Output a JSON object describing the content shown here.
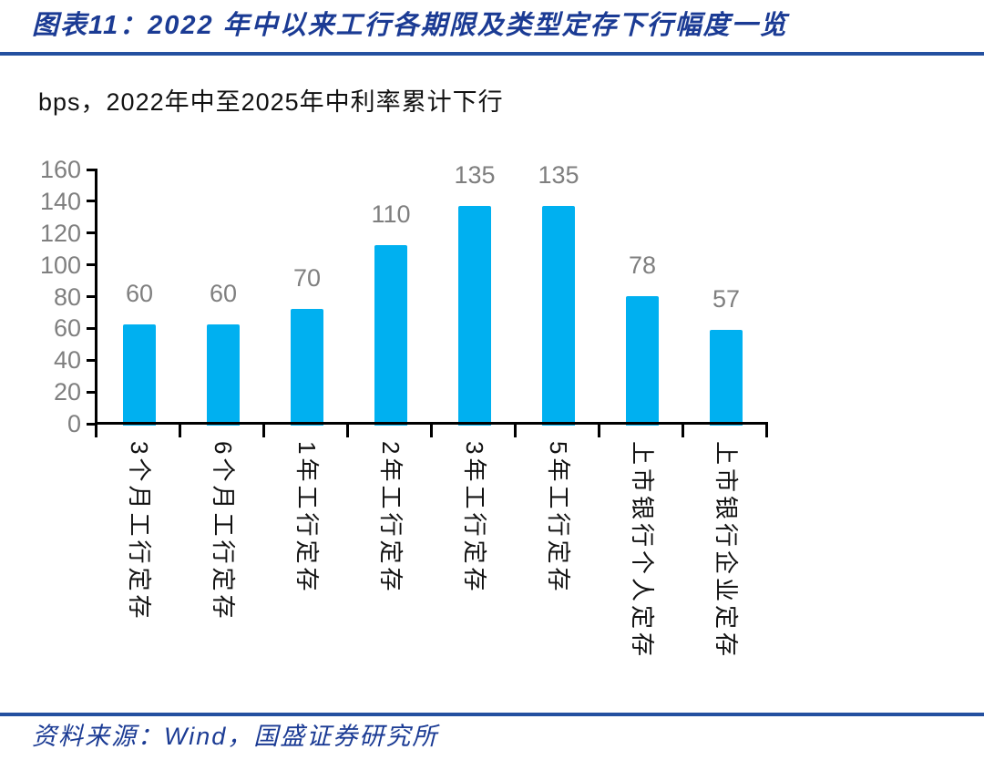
{
  "header": {
    "title": "图表11：2022 年中以来工行各期限及类型定存下行幅度一览"
  },
  "chart_data": {
    "type": "bar",
    "title": "bps，2022年中至2025年中利率累计下行",
    "unit": "bps",
    "categories": [
      "3个月工行定存",
      "6个月工行定存",
      "1年工行定存",
      "2年工行定存",
      "3年工行定存",
      "5年工行定存",
      "上市银行个人定存",
      "上市银行企业定存"
    ],
    "values": [
      60,
      60,
      70,
      110,
      135,
      135,
      78,
      57
    ],
    "xlabel": "",
    "ylabel": "",
    "ylim": [
      0,
      160
    ],
    "ytick_step": 20,
    "grid": false,
    "legend": false,
    "category_label_rotation": 90,
    "bar_color": "#00B0F0",
    "value_label_color": "#7F7F7F",
    "tick_label_color": "#7F7F7F",
    "category_label_color": "#111111",
    "axis_color": "#000000"
  },
  "footer": {
    "source": "资料来源：Wind，国盛证券研究所"
  },
  "theme": {
    "title_blue": "#1B3B94",
    "rule_blue": "#2450A0",
    "background": "#FFFFFF"
  }
}
